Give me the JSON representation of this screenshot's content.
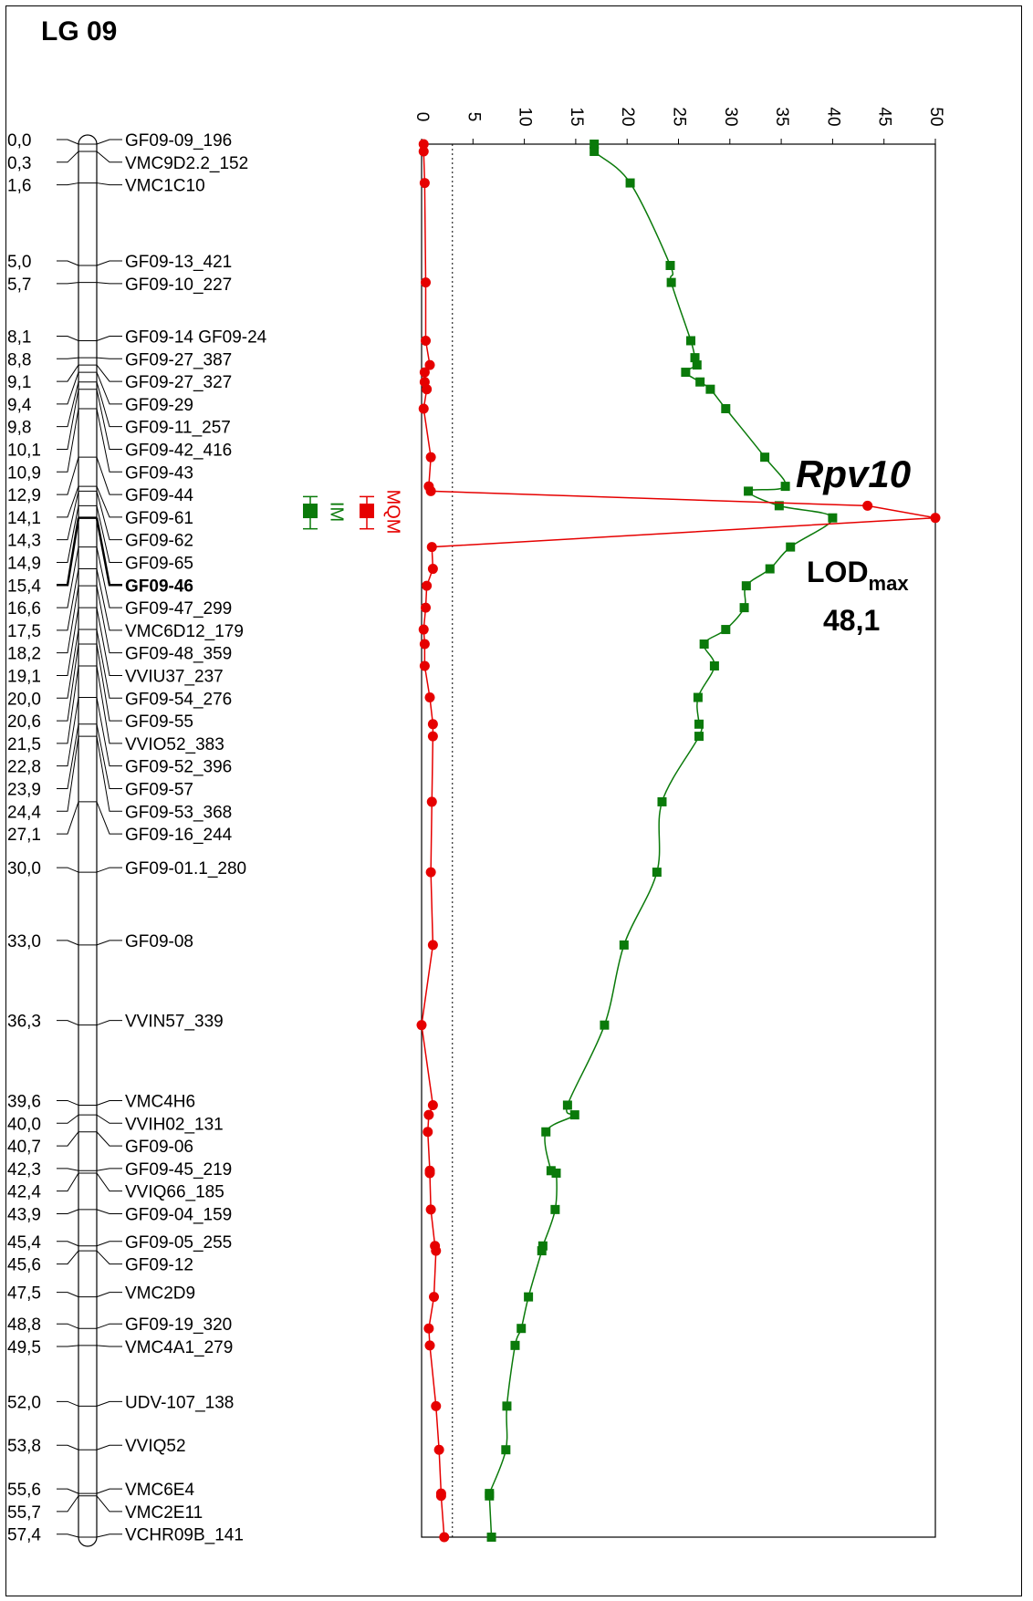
{
  "title": "LG 09",
  "colors": {
    "im": "#0a7a0a",
    "mqm": "#e60000",
    "axis": "#000000"
  },
  "markers": [
    {
      "pos": 0.0,
      "pos_label": "0,0",
      "name": "GF09-09_196"
    },
    {
      "pos": 0.3,
      "pos_label": "0,3",
      "name": "VMC9D2.2_152"
    },
    {
      "pos": 1.6,
      "pos_label": "1,6",
      "name": "VMC1C10"
    },
    {
      "pos": 5.0,
      "pos_label": "5,0",
      "name": "GF09-13_421"
    },
    {
      "pos": 5.7,
      "pos_label": "5,7",
      "name": "GF09-10_227"
    },
    {
      "pos": 8.1,
      "pos_label": "8,1",
      "name": "GF09-14 GF09-24"
    },
    {
      "pos": 8.8,
      "pos_label": "8,8",
      "name": "GF09-27_387"
    },
    {
      "pos": 9.1,
      "pos_label": "9,1",
      "name": "GF09-27_327"
    },
    {
      "pos": 9.4,
      "pos_label": "9,4",
      "name": "GF09-29"
    },
    {
      "pos": 9.8,
      "pos_label": "9,8",
      "name": "GF09-11_257"
    },
    {
      "pos": 10.1,
      "pos_label": "10,1",
      "name": "GF09-42_416"
    },
    {
      "pos": 10.9,
      "pos_label": "10,9",
      "name": "GF09-43"
    },
    {
      "pos": 12.9,
      "pos_label": "12,9",
      "name": "GF09-44"
    },
    {
      "pos": 14.1,
      "pos_label": "14,1",
      "name": "GF09-61"
    },
    {
      "pos": 14.3,
      "pos_label": "14,3",
      "name": "GF09-62"
    },
    {
      "pos": 14.9,
      "pos_label": "14,9",
      "name": "GF09-65"
    },
    {
      "pos": 15.4,
      "pos_label": "15,4",
      "name": "GF09-46",
      "bold": true
    },
    {
      "pos": 16.6,
      "pos_label": "16,6",
      "name": "GF09-47_299"
    },
    {
      "pos": 17.5,
      "pos_label": "17,5",
      "name": "VMC6D12_179"
    },
    {
      "pos": 18.2,
      "pos_label": "18,2",
      "name": "GF09-48_359"
    },
    {
      "pos": 19.1,
      "pos_label": "19,1",
      "name": "VVIU37_237"
    },
    {
      "pos": 20.0,
      "pos_label": "20,0",
      "name": "GF09-54_276"
    },
    {
      "pos": 20.6,
      "pos_label": "20,6",
      "name": "GF09-55"
    },
    {
      "pos": 21.5,
      "pos_label": "21,5",
      "name": "VVIO52_383"
    },
    {
      "pos": 22.8,
      "pos_label": "22,8",
      "name": "GF09-52_396"
    },
    {
      "pos": 23.9,
      "pos_label": "23,9",
      "name": "GF09-57"
    },
    {
      "pos": 24.4,
      "pos_label": "24,4",
      "name": "GF09-53_368"
    },
    {
      "pos": 27.1,
      "pos_label": "27,1",
      "name": "GF09-16_244"
    },
    {
      "pos": 30.0,
      "pos_label": "30,0",
      "name": "GF09-01.1_280"
    },
    {
      "pos": 33.0,
      "pos_label": "33,0",
      "name": "GF09-08"
    },
    {
      "pos": 36.3,
      "pos_label": "36,3",
      "name": "VVIN57_339"
    },
    {
      "pos": 39.6,
      "pos_label": "39,6",
      "name": "VMC4H6"
    },
    {
      "pos": 40.0,
      "pos_label": "40,0",
      "name": "VVIH02_131"
    },
    {
      "pos": 40.7,
      "pos_label": "40,7",
      "name": "GF09-06"
    },
    {
      "pos": 42.3,
      "pos_label": "42,3",
      "name": "GF09-45_219"
    },
    {
      "pos": 42.4,
      "pos_label": "42,4",
      "name": "VVIQ66_185"
    },
    {
      "pos": 43.9,
      "pos_label": "43,9",
      "name": "GF09-04_159"
    },
    {
      "pos": 45.4,
      "pos_label": "45,4",
      "name": "GF09-05_255"
    },
    {
      "pos": 45.6,
      "pos_label": "45,6",
      "name": "GF09-12"
    },
    {
      "pos": 47.5,
      "pos_label": "47,5",
      "name": "VMC2D9"
    },
    {
      "pos": 48.8,
      "pos_label": "48,8",
      "name": "GF09-19_320"
    },
    {
      "pos": 49.5,
      "pos_label": "49,5",
      "name": "VMC4A1_279"
    },
    {
      "pos": 52.0,
      "pos_label": "52,0",
      "name": "UDV-107_138"
    },
    {
      "pos": 53.8,
      "pos_label": "53,8",
      "name": "VVIQ52"
    },
    {
      "pos": 55.6,
      "pos_label": "55,6",
      "name": "VMC6E4"
    },
    {
      "pos": 55.7,
      "pos_label": "55,7",
      "name": "VMC2E11"
    },
    {
      "pos": 57.4,
      "pos_label": "57,4",
      "name": "VCHR09B_141"
    }
  ],
  "chart_data": {
    "type": "line",
    "x_ticks": [
      0,
      5,
      10,
      15,
      20,
      25,
      30,
      35,
      40,
      45,
      50
    ],
    "xlim": [
      0,
      50
    ],
    "y_range_cM": [
      0,
      57.4
    ],
    "y_orientation": "top-to-bottom",
    "threshold": 3,
    "series": [
      {
        "name": "IM",
        "points": [
          [
            16.8,
            0.0
          ],
          [
            16.8,
            0.3
          ],
          [
            20.3,
            1.6
          ],
          [
            24.2,
            5.0
          ],
          [
            24.3,
            5.7
          ],
          [
            26.2,
            8.1
          ],
          [
            26.6,
            8.8
          ],
          [
            26.8,
            9.1
          ],
          [
            25.7,
            9.4
          ],
          [
            27.1,
            9.8
          ],
          [
            28.1,
            10.1
          ],
          [
            29.6,
            10.9
          ],
          [
            33.4,
            12.9
          ],
          [
            35.4,
            14.1
          ],
          [
            31.8,
            14.3
          ],
          [
            34.8,
            14.9
          ],
          [
            40.0,
            15.4
          ],
          [
            35.9,
            16.6
          ],
          [
            33.9,
            17.5
          ],
          [
            31.6,
            18.2
          ],
          [
            31.4,
            19.1
          ],
          [
            29.6,
            20.0
          ],
          [
            27.5,
            20.6
          ],
          [
            28.5,
            21.5
          ],
          [
            26.9,
            22.8
          ],
          [
            27.0,
            23.9
          ],
          [
            27.0,
            24.4
          ],
          [
            23.4,
            27.1
          ],
          [
            22.9,
            30.0
          ],
          [
            19.7,
            33.0
          ],
          [
            17.8,
            36.3
          ],
          [
            14.2,
            39.6
          ],
          [
            14.9,
            40.0
          ],
          [
            12.1,
            40.7
          ],
          [
            12.6,
            42.3
          ],
          [
            13.1,
            42.4
          ],
          [
            13.0,
            43.9
          ],
          [
            11.8,
            45.4
          ],
          [
            11.7,
            45.6
          ],
          [
            10.4,
            47.5
          ],
          [
            9.7,
            48.8
          ],
          [
            9.1,
            49.5
          ],
          [
            8.3,
            52.0
          ],
          [
            8.2,
            53.8
          ],
          [
            6.6,
            55.6
          ],
          [
            6.6,
            55.7
          ],
          [
            6.8,
            57.4
          ]
        ]
      },
      {
        "name": "MQM",
        "points": [
          [
            0.2,
            0.0
          ],
          [
            0.2,
            0.3
          ],
          [
            0.3,
            1.6
          ],
          [
            0.4,
            5.7
          ],
          [
            0.4,
            8.1
          ],
          [
            0.8,
            9.1
          ],
          [
            0.3,
            9.4
          ],
          [
            0.3,
            9.8
          ],
          [
            0.5,
            10.1
          ],
          [
            0.2,
            10.9
          ],
          [
            0.9,
            12.9
          ],
          [
            0.7,
            14.1
          ],
          [
            0.9,
            14.3
          ],
          [
            43.4,
            14.9
          ],
          [
            50.0,
            15.4
          ],
          [
            1.0,
            16.6
          ],
          [
            1.1,
            17.5
          ],
          [
            0.5,
            18.2
          ],
          [
            0.4,
            19.1
          ],
          [
            0.2,
            20.0
          ],
          [
            0.3,
            20.6
          ],
          [
            0.3,
            21.5
          ],
          [
            0.8,
            22.8
          ],
          [
            1.1,
            23.9
          ],
          [
            1.1,
            24.4
          ],
          [
            1.0,
            27.1
          ],
          [
            0.9,
            30.0
          ],
          [
            1.1,
            33.0
          ],
          [
            0.0,
            36.3
          ],
          [
            1.1,
            39.6
          ],
          [
            0.7,
            40.0
          ],
          [
            0.6,
            40.7
          ],
          [
            0.8,
            42.3
          ],
          [
            0.8,
            42.4
          ],
          [
            0.9,
            43.9
          ],
          [
            1.3,
            45.4
          ],
          [
            1.4,
            45.6
          ],
          [
            1.2,
            47.5
          ],
          [
            0.7,
            48.8
          ],
          [
            0.8,
            49.5
          ],
          [
            1.4,
            52.0
          ],
          [
            1.7,
            53.8
          ],
          [
            1.9,
            55.6
          ],
          [
            1.9,
            55.7
          ],
          [
            2.2,
            57.4
          ]
        ]
      }
    ],
    "qtl": {
      "name": "Rpv10",
      "lod_label": "LOD",
      "lod_sub": "max",
      "lod_value": "48,1"
    },
    "intervals": [
      {
        "name": "IM",
        "color_key": "im"
      },
      {
        "name": "MQM",
        "color_key": "mqm"
      }
    ]
  }
}
